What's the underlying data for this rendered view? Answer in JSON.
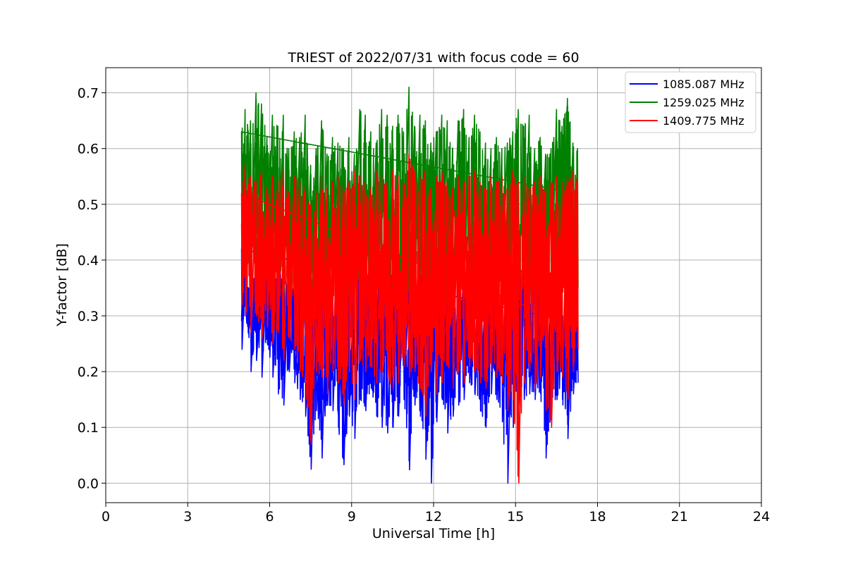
{
  "chart_data": {
    "type": "line",
    "title": "TRIEST of 2022/07/31 with focus code = 60",
    "xlabel": "Universal Time [h]",
    "ylabel": "Y-factor [dB]",
    "xlim": [
      0,
      24
    ],
    "ylim": [
      -0.035,
      0.745
    ],
    "xticks": [
      0,
      3,
      6,
      9,
      12,
      15,
      18,
      21,
      24
    ],
    "xtick_labels": [
      "0",
      "3",
      "6",
      "9",
      "12",
      "15",
      "18",
      "21",
      "24"
    ],
    "yticks": [
      0.0,
      0.1,
      0.2,
      0.3,
      0.4,
      0.5,
      0.6,
      0.7
    ],
    "ytick_labels": [
      "0.0",
      "0.1",
      "0.2",
      "0.3",
      "0.4",
      "0.5",
      "0.6",
      "0.7"
    ],
    "grid": true,
    "legend_position": "top-right",
    "series": [
      {
        "name": "1085.087 MHz",
        "color": "#0000ff",
        "x": [
          4.97,
          5.1,
          5.3,
          5.5,
          5.7,
          5.9,
          6.1,
          6.3,
          6.5,
          6.7,
          6.9,
          7.1,
          7.3,
          7.5,
          7.7,
          7.9,
          8.1,
          8.3,
          8.5,
          8.7,
          8.9,
          9.1,
          9.3,
          9.5,
          9.7,
          9.9,
          10.1,
          10.3,
          10.5,
          10.7,
          10.9,
          11.1,
          11.3,
          11.5,
          11.7,
          11.9,
          12.1,
          12.3,
          12.5,
          12.7,
          12.9,
          13.1,
          13.3,
          13.5,
          13.7,
          13.9,
          14.1,
          14.3,
          14.5,
          14.7,
          14.9,
          15.1,
          15.3,
          15.5,
          15.7,
          15.9,
          16.1,
          16.3,
          16.5,
          16.7,
          16.9,
          17.1,
          17.27
        ],
        "min": [
          0.24,
          0.3,
          0.2,
          0.22,
          0.19,
          0.25,
          0.19,
          0.16,
          0.14,
          0.2,
          0.18,
          0.15,
          0.12,
          0.025,
          0.13,
          0.045,
          0.14,
          0.13,
          0.1,
          0.033,
          0.12,
          0.08,
          0.15,
          0.13,
          0.17,
          0.12,
          0.1,
          0.09,
          0.1,
          0.12,
          0.15,
          0.024,
          0.14,
          0.12,
          0.043,
          0.0,
          0.11,
          0.15,
          0.09,
          0.12,
          0.14,
          0.15,
          0.18,
          0.16,
          0.13,
          0.1,
          0.16,
          0.15,
          0.11,
          0.0,
          0.1,
          0.14,
          0.15,
          0.16,
          0.15,
          0.16,
          0.045,
          0.12,
          0.15,
          0.15,
          0.08,
          0.16,
          0.18
        ],
        "max": [
          0.42,
          0.38,
          0.36,
          0.41,
          0.37,
          0.4,
          0.38,
          0.36,
          0.4,
          0.38,
          0.37,
          0.36,
          0.34,
          0.3,
          0.38,
          0.36,
          0.37,
          0.35,
          0.38,
          0.37,
          0.36,
          0.39,
          0.4,
          0.42,
          0.41,
          0.38,
          0.39,
          0.42,
          0.38,
          0.4,
          0.37,
          0.36,
          0.38,
          0.4,
          0.38,
          0.36,
          0.38,
          0.41,
          0.39,
          0.37,
          0.36,
          0.4,
          0.38,
          0.37,
          0.39,
          0.36,
          0.38,
          0.4,
          0.37,
          0.36,
          0.38,
          0.39,
          0.4,
          0.38,
          0.37,
          0.39,
          0.38,
          0.37,
          0.4,
          0.38,
          0.36,
          0.39,
          0.3
        ]
      },
      {
        "name": "1259.025 MHz",
        "color": "#008000",
        "x": [
          4.97,
          5.1,
          5.3,
          5.5,
          5.7,
          5.9,
          6.1,
          6.3,
          6.5,
          6.7,
          6.9,
          7.1,
          7.3,
          7.5,
          7.7,
          7.9,
          8.1,
          8.3,
          8.5,
          8.7,
          8.9,
          9.1,
          9.3,
          9.5,
          9.7,
          9.9,
          10.1,
          10.3,
          10.5,
          10.7,
          10.9,
          11.1,
          11.3,
          11.5,
          11.7,
          11.9,
          12.1,
          12.3,
          12.5,
          12.7,
          12.9,
          13.1,
          13.3,
          13.5,
          13.7,
          13.9,
          14.1,
          14.3,
          14.5,
          14.7,
          14.9,
          15.1,
          15.3,
          15.5,
          15.7,
          15.9,
          16.1,
          16.3,
          16.5,
          16.7,
          16.9,
          17.1,
          17.27
        ],
        "min": [
          0.36,
          0.38,
          0.36,
          0.35,
          0.37,
          0.36,
          0.34,
          0.35,
          0.33,
          0.36,
          0.34,
          0.33,
          0.34,
          0.3,
          0.33,
          0.35,
          0.34,
          0.33,
          0.32,
          0.34,
          0.33,
          0.35,
          0.36,
          0.34,
          0.35,
          0.33,
          0.34,
          0.35,
          0.33,
          0.34,
          0.35,
          0.33,
          0.34,
          0.35,
          0.33,
          0.34,
          0.35,
          0.34,
          0.33,
          0.35,
          0.34,
          0.33,
          0.35,
          0.34,
          0.33,
          0.35,
          0.34,
          0.33,
          0.34,
          0.35,
          0.33,
          0.34,
          0.35,
          0.34,
          0.33,
          0.35,
          0.34,
          0.33,
          0.34,
          0.35,
          0.33,
          0.34,
          0.35
        ],
        "max": [
          0.63,
          0.67,
          0.65,
          0.7,
          0.68,
          0.62,
          0.66,
          0.64,
          0.66,
          0.6,
          0.63,
          0.62,
          0.66,
          0.57,
          0.6,
          0.65,
          0.59,
          0.62,
          0.61,
          0.6,
          0.62,
          0.59,
          0.67,
          0.66,
          0.63,
          0.61,
          0.67,
          0.66,
          0.64,
          0.66,
          0.63,
          0.71,
          0.64,
          0.66,
          0.65,
          0.61,
          0.63,
          0.66,
          0.65,
          0.6,
          0.65,
          0.67,
          0.62,
          0.66,
          0.63,
          0.61,
          0.6,
          0.62,
          0.6,
          0.61,
          0.63,
          0.67,
          0.64,
          0.66,
          0.6,
          0.62,
          0.59,
          0.6,
          0.67,
          0.64,
          0.69,
          0.61,
          0.6
        ]
      },
      {
        "name": "1409.775 MHz",
        "color": "#ff0000",
        "x": [
          4.97,
          5.1,
          5.3,
          5.5,
          5.7,
          5.9,
          6.1,
          6.3,
          6.5,
          6.7,
          6.9,
          7.1,
          7.3,
          7.5,
          7.7,
          7.9,
          8.1,
          8.3,
          8.5,
          8.7,
          8.9,
          9.1,
          9.3,
          9.5,
          9.7,
          9.9,
          10.1,
          10.3,
          10.5,
          10.7,
          10.9,
          11.1,
          11.3,
          11.5,
          11.7,
          11.9,
          12.1,
          12.3,
          12.5,
          12.7,
          12.9,
          13.1,
          13.3,
          13.5,
          13.7,
          13.9,
          14.1,
          14.3,
          14.5,
          14.7,
          14.9,
          15.1,
          15.3,
          15.5,
          15.7,
          15.9,
          16.1,
          16.3,
          16.5,
          16.7,
          16.9,
          17.1,
          17.27
        ],
        "min": [
          0.32,
          0.3,
          0.27,
          0.3,
          0.26,
          0.28,
          0.25,
          0.27,
          0.22,
          0.26,
          0.24,
          0.2,
          0.18,
          0.07,
          0.2,
          0.19,
          0.16,
          0.2,
          0.18,
          0.14,
          0.2,
          0.15,
          0.22,
          0.2,
          0.21,
          0.18,
          0.2,
          0.19,
          0.17,
          0.18,
          0.21,
          0.19,
          0.2,
          0.17,
          0.12,
          0.2,
          0.16,
          0.18,
          0.21,
          0.17,
          0.2,
          0.18,
          0.21,
          0.2,
          0.18,
          0.17,
          0.2,
          0.19,
          0.18,
          0.13,
          0.15,
          0.0,
          0.18,
          0.2,
          0.17,
          0.19,
          0.13,
          0.1,
          0.2,
          0.19,
          0.15,
          0.2,
          0.24
        ],
        "max": [
          0.52,
          0.57,
          0.55,
          0.54,
          0.56,
          0.53,
          0.55,
          0.54,
          0.56,
          0.52,
          0.55,
          0.54,
          0.53,
          0.5,
          0.52,
          0.55,
          0.53,
          0.54,
          0.55,
          0.53,
          0.54,
          0.56,
          0.55,
          0.54,
          0.53,
          0.56,
          0.55,
          0.54,
          0.56,
          0.55,
          0.54,
          0.59,
          0.56,
          0.55,
          0.56,
          0.53,
          0.55,
          0.56,
          0.54,
          0.53,
          0.55,
          0.54,
          0.55,
          0.56,
          0.54,
          0.53,
          0.55,
          0.54,
          0.55,
          0.53,
          0.56,
          0.54,
          0.55,
          0.53,
          0.54,
          0.55,
          0.53,
          0.54,
          0.55,
          0.54,
          0.55,
          0.56,
          0.54
        ]
      }
    ]
  }
}
